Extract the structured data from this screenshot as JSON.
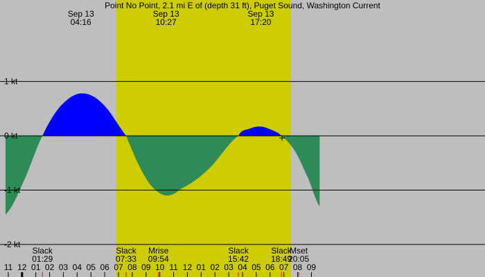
{
  "chart_data": {
    "type": "area",
    "title": "Point No Point, 2.1 mi E of (depth 31 ft), Puget Sound, Washington Current",
    "unit": "kt",
    "ylim": [
      -2.6,
      2.5
    ],
    "xlim_hours": [
      -1.6,
      33.6
    ],
    "day_shading": {
      "start": "06:50",
      "end": "19:30",
      "color": "#cccc00"
    },
    "night_color": "#bebebe",
    "flood_color": "#0000ff",
    "ebb_color": "#2e8b57",
    "y_gridlines": [
      {
        "value": 1,
        "label": "1 kt"
      },
      {
        "value": 0,
        "label": "0 kt"
      },
      {
        "value": -1,
        "label": "-1 kt"
      },
      {
        "value": -2,
        "label": "-2 kt"
      }
    ],
    "top_events": [
      {
        "date": "Sep 13",
        "time": "04:16",
        "hours": 4.27
      },
      {
        "date": "Sep 13",
        "time": "10:27",
        "hours": 10.45
      },
      {
        "date": "Sep 13",
        "time": "17:20",
        "hours": 17.33
      }
    ],
    "bottom_events": [
      {
        "label": "Slack",
        "time": "01:29",
        "hours": 1.48
      },
      {
        "label": "Slack",
        "time": "07:33",
        "hours": 7.55
      },
      {
        "label": "Mrise",
        "time": "09:54",
        "hours": 9.9
      },
      {
        "label": "Slack",
        "time": "15:42",
        "hours": 15.7
      },
      {
        "label": "Slack",
        "time": "18:49",
        "hours": 18.82
      },
      {
        "label": "Mset",
        "time": "20:05",
        "hours": 20.08
      }
    ],
    "hour_ticks": [
      {
        "label": "11",
        "hours": -1
      },
      {
        "label": "12",
        "hours": 0
      },
      {
        "label": "01",
        "hours": 1
      },
      {
        "label": "02",
        "hours": 2
      },
      {
        "label": "03",
        "hours": 3
      },
      {
        "label": "04",
        "hours": 4
      },
      {
        "label": "05",
        "hours": 5
      },
      {
        "label": "06",
        "hours": 6
      },
      {
        "label": "07",
        "hours": 7
      },
      {
        "label": "08",
        "hours": 8
      },
      {
        "label": "09",
        "hours": 9
      },
      {
        "label": "10",
        "hours": 10
      },
      {
        "label": "11",
        "hours": 11
      },
      {
        "label": "12",
        "hours": 12
      },
      {
        "label": "01",
        "hours": 13
      },
      {
        "label": "02",
        "hours": 14
      },
      {
        "label": "03",
        "hours": 15
      },
      {
        "label": "04",
        "hours": 16
      },
      {
        "label": "05",
        "hours": 17
      },
      {
        "label": "06",
        "hours": 18
      },
      {
        "label": "07",
        "hours": 19
      },
      {
        "label": "08",
        "hours": 20
      },
      {
        "label": "09",
        "hours": 21
      }
    ],
    "series": [
      {
        "points": [
          [
            -1.2,
            -1.45
          ],
          [
            0.0,
            -0.9
          ],
          [
            1.48,
            0.0
          ],
          [
            2.8,
            0.55
          ],
          [
            4.27,
            0.78
          ],
          [
            5.8,
            0.6
          ],
          [
            7.55,
            0.0
          ],
          [
            8.5,
            -0.55
          ],
          [
            9.4,
            -0.93
          ],
          [
            10.45,
            -1.1
          ],
          [
            11.5,
            -0.98
          ],
          [
            13.5,
            -0.62
          ],
          [
            15.7,
            0.0
          ],
          [
            16.5,
            0.13
          ],
          [
            17.33,
            0.17
          ],
          [
            18.2,
            0.1
          ],
          [
            18.82,
            0.0
          ],
          [
            19.8,
            -0.28
          ],
          [
            20.8,
            -0.8
          ],
          [
            21.6,
            -1.3
          ]
        ]
      }
    ],
    "marker": {
      "hours": 18.87,
      "value": -0.04
    }
  }
}
